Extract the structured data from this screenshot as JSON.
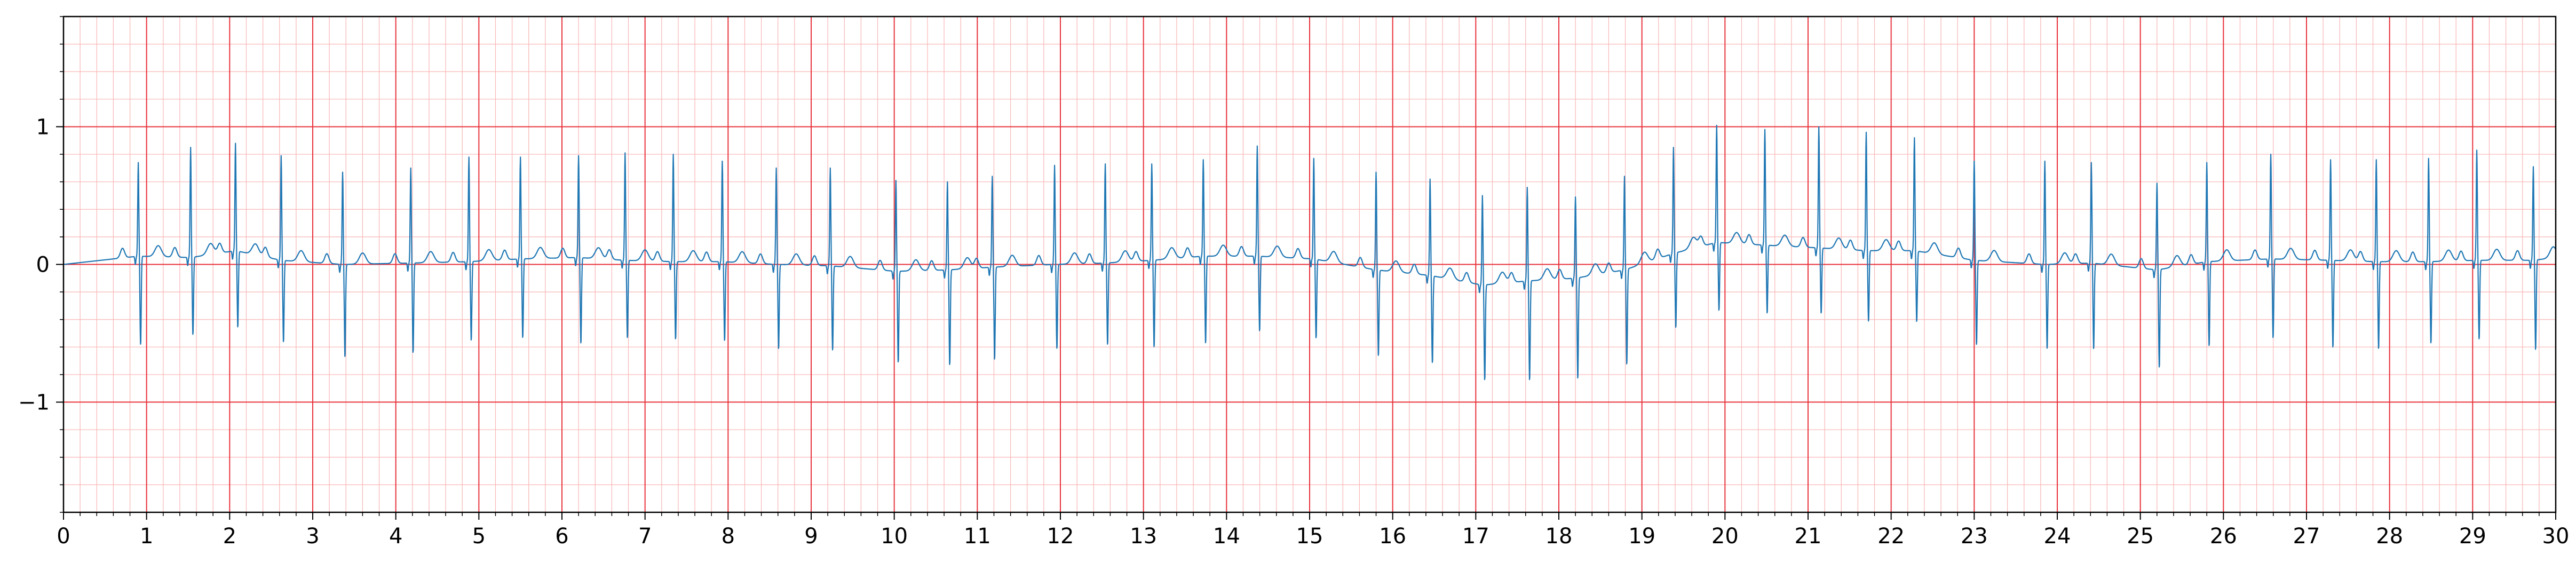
{
  "colors": {
    "background": "#ffffff",
    "major_grid": "#e8323c",
    "minor_grid": "#f9b4b4",
    "trace": "#1f77b4",
    "axes": "#000000"
  },
  "chart_data": {
    "type": "line",
    "title": "",
    "xlabel": "",
    "ylabel": "",
    "xlim": [
      0,
      30
    ],
    "ylim": [
      -1.8,
      1.8
    ],
    "grid": true,
    "grid_major": {
      "x": 1,
      "y": 1
    },
    "grid_minor": {
      "x": 0.2,
      "y": 0.2
    },
    "x_tick_labels": [
      "0",
      "1",
      "2",
      "3",
      "4",
      "5",
      "6",
      "7",
      "8",
      "9",
      "10",
      "11",
      "12",
      "13",
      "14",
      "15",
      "16",
      "17",
      "18",
      "19",
      "20",
      "21",
      "22",
      "23",
      "24",
      "25",
      "26",
      "27",
      "28",
      "29",
      "30"
    ],
    "y_ticks": [
      -1,
      0,
      1
    ],
    "y_tick_labels": [
      "−1",
      "0",
      "1"
    ],
    "series": [
      {
        "beats": [
          {
            "t": 0.9,
            "r": 0.68,
            "s": -0.65,
            "base": 0.06
          },
          {
            "t": 1.53,
            "r": 0.8,
            "s": -0.57,
            "base": 0.05
          },
          {
            "t": 2.07,
            "r": 0.78,
            "s": -0.56,
            "base": 0.1
          },
          {
            "t": 2.62,
            "r": 0.76,
            "s": -0.6,
            "base": 0.03
          },
          {
            "t": 3.36,
            "r": 0.67,
            "s": -0.68,
            "base": 0.0
          },
          {
            "t": 4.18,
            "r": 0.69,
            "s": -0.66,
            "base": 0.01
          },
          {
            "t": 4.88,
            "r": 0.76,
            "s": -0.58,
            "base": 0.02
          },
          {
            "t": 5.5,
            "r": 0.74,
            "s": -0.58,
            "base": 0.04
          },
          {
            "t": 6.2,
            "r": 0.74,
            "s": -0.63,
            "base": 0.05
          },
          {
            "t": 6.76,
            "r": 0.78,
            "s": -0.57,
            "base": 0.03
          },
          {
            "t": 7.34,
            "r": 0.78,
            "s": -0.57,
            "base": 0.02
          },
          {
            "t": 7.93,
            "r": 0.73,
            "s": -0.58,
            "base": 0.02
          },
          {
            "t": 8.58,
            "r": 0.7,
            "s": -0.62,
            "base": 0.0
          },
          {
            "t": 9.23,
            "r": 0.71,
            "s": -0.62,
            "base": -0.01
          },
          {
            "t": 10.02,
            "r": 0.66,
            "s": -0.67,
            "base": -0.05
          },
          {
            "t": 10.64,
            "r": 0.64,
            "s": -0.7,
            "base": -0.04
          },
          {
            "t": 11.18,
            "r": 0.66,
            "s": -0.68,
            "base": -0.02
          },
          {
            "t": 11.93,
            "r": 0.72,
            "s": -0.62,
            "base": 0.0
          },
          {
            "t": 12.54,
            "r": 0.72,
            "s": -0.6,
            "base": 0.01
          },
          {
            "t": 13.1,
            "r": 0.7,
            "s": -0.64,
            "base": 0.03
          },
          {
            "t": 13.72,
            "r": 0.7,
            "s": -0.64,
            "base": 0.06
          },
          {
            "t": 14.37,
            "r": 0.8,
            "s": -0.55,
            "base": 0.06
          },
          {
            "t": 15.05,
            "r": 0.73,
            "s": -0.58,
            "base": 0.04
          },
          {
            "t": 15.8,
            "r": 0.71,
            "s": -0.63,
            "base": -0.04
          },
          {
            "t": 16.45,
            "r": 0.7,
            "s": -0.64,
            "base": -0.08
          },
          {
            "t": 17.08,
            "r": 0.65,
            "s": -0.7,
            "base": -0.15
          },
          {
            "t": 17.62,
            "r": 0.68,
            "s": -0.73,
            "base": -0.12
          },
          {
            "t": 18.2,
            "r": 0.59,
            "s": -0.74,
            "base": -0.1
          },
          {
            "t": 18.79,
            "r": 0.68,
            "s": -0.7,
            "base": -0.04
          },
          {
            "t": 19.38,
            "r": 0.77,
            "s": -0.55,
            "base": 0.08
          },
          {
            "t": 19.9,
            "r": 0.85,
            "s": -0.5,
            "base": 0.16
          },
          {
            "t": 20.48,
            "r": 0.84,
            "s": -0.5,
            "base": 0.14
          },
          {
            "t": 21.13,
            "r": 0.88,
            "s": -0.48,
            "base": 0.12
          },
          {
            "t": 21.7,
            "r": 0.86,
            "s": -0.52,
            "base": 0.1
          },
          {
            "t": 22.28,
            "r": 0.82,
            "s": -0.52,
            "base": 0.1
          },
          {
            "t": 23.0,
            "r": 0.72,
            "s": -0.62,
            "base": 0.03
          },
          {
            "t": 23.85,
            "r": 0.75,
            "s": -0.62,
            "base": 0.0
          },
          {
            "t": 24.41,
            "r": 0.73,
            "s": -0.63,
            "base": 0.01
          },
          {
            "t": 25.2,
            "r": 0.63,
            "s": -0.72,
            "base": -0.04
          },
          {
            "t": 25.8,
            "r": 0.72,
            "s": -0.62,
            "base": 0.02
          },
          {
            "t": 26.57,
            "r": 0.76,
            "s": -0.58,
            "base": 0.04
          },
          {
            "t": 27.29,
            "r": 0.73,
            "s": -0.64,
            "base": 0.03
          },
          {
            "t": 27.84,
            "r": 0.74,
            "s": -0.64,
            "base": 0.02
          },
          {
            "t": 28.47,
            "r": 0.75,
            "s": -0.6,
            "base": 0.02
          },
          {
            "t": 29.05,
            "r": 0.8,
            "s": -0.58,
            "base": 0.03
          },
          {
            "t": 29.73,
            "r": 0.68,
            "s": -0.66,
            "base": 0.03
          }
        ],
        "end_level": 0.05
      }
    ]
  }
}
